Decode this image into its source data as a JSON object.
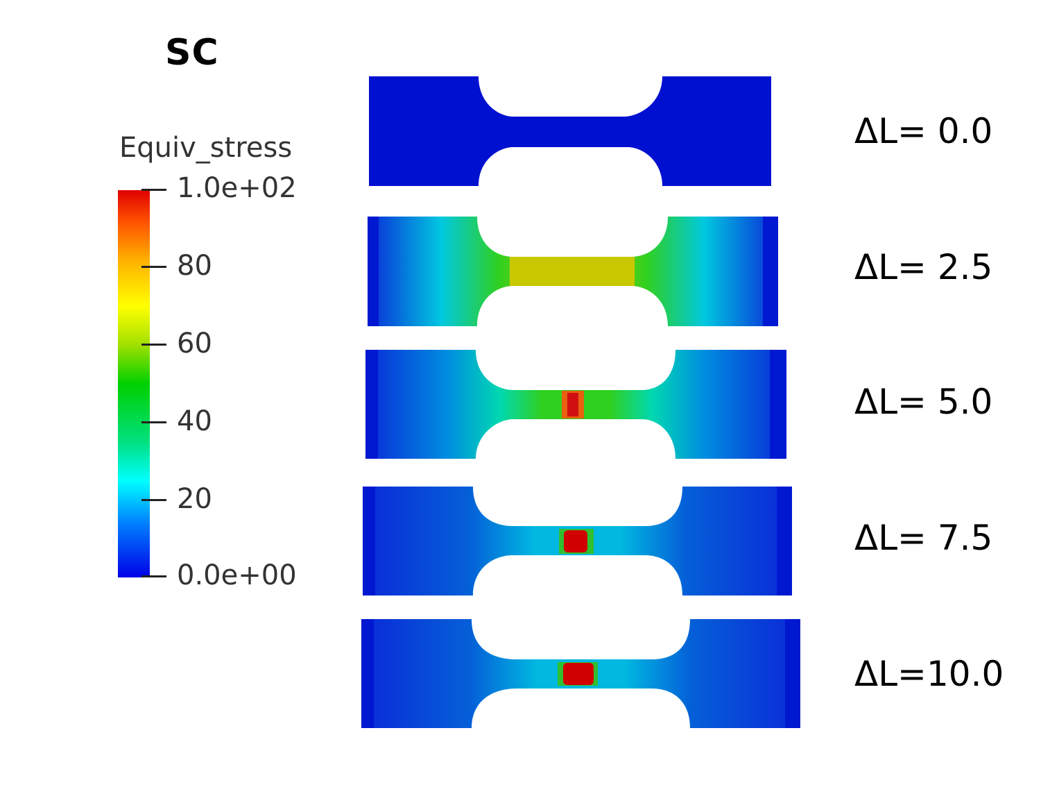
{
  "title": "SC",
  "legend": {
    "title": "Equiv_stress",
    "ticks": [
      "1.0e+02",
      "80",
      "60",
      "40",
      "20",
      "0.0e+00"
    ]
  },
  "specimens": [
    {
      "label": "ΔL= 0.0"
    },
    {
      "label": "ΔL= 2.5"
    },
    {
      "label": "ΔL= 5.0"
    },
    {
      "label": "ΔL= 7.5"
    },
    {
      "label": "ΔL=10.0"
    }
  ],
  "colors": {
    "low": "#0000e6",
    "mid": "#00d000",
    "high": "#e00000",
    "yellow": "#d0cc00"
  }
}
